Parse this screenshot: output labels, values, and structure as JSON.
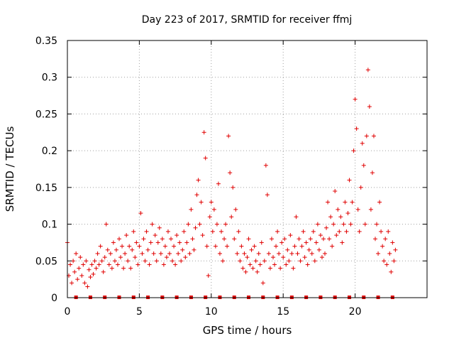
{
  "chart_data": {
    "type": "scatter",
    "title": "Day 223 of 2017, SRMTID for receiver ffmj",
    "xlabel": "GPS time / hours",
    "ylabel": "SRMTID / TECUs",
    "xlim": [
      0,
      25
    ],
    "ylim": [
      0,
      0.35
    ],
    "xticks": [
      0,
      5,
      10,
      15,
      20
    ],
    "xtick_labels": [
      "0",
      "5",
      "10",
      "15",
      "20"
    ],
    "yticks": [
      0,
      0.05,
      0.1,
      0.15,
      0.2,
      0.25,
      0.3,
      0.35
    ],
    "ytick_labels": [
      "0",
      "0.05",
      "0.1",
      "0.15",
      "0.2",
      "0.25",
      "0.3",
      "0.35"
    ],
    "grid": true,
    "marker": "+",
    "color": "#e00000",
    "data_gap_markers_x": [
      0.6,
      1.6,
      2.6,
      3.6,
      4.6,
      5.6,
      6.6,
      7.6,
      8.6,
      9.6,
      10.6,
      11.6,
      12.6,
      13.6,
      14.6,
      15.6,
      16.6,
      17.6,
      18.6,
      19.6,
      20.6,
      21.6,
      22.6
    ],
    "series": [
      {
        "name": "SRMTID",
        "points": [
          [
            0.0,
            0.075
          ],
          [
            0.1,
            0.03
          ],
          [
            0.2,
            0.045
          ],
          [
            0.3,
            0.02
          ],
          [
            0.4,
            0.05
          ],
          [
            0.5,
            0.035
          ],
          [
            0.6,
            0.06
          ],
          [
            0.7,
            0.025
          ],
          [
            0.8,
            0.04
          ],
          [
            0.9,
            0.055
          ],
          [
            1.0,
            0.03
          ],
          [
            1.1,
            0.045
          ],
          [
            1.2,
            0.02
          ],
          [
            1.3,
            0.05
          ],
          [
            1.4,
            0.015
          ],
          [
            1.5,
            0.038
          ],
          [
            1.6,
            0.028
          ],
          [
            1.7,
            0.045
          ],
          [
            1.8,
            0.032
          ],
          [
            1.9,
            0.05
          ],
          [
            2.0,
            0.04
          ],
          [
            2.1,
            0.06
          ],
          [
            2.2,
            0.045
          ],
          [
            2.3,
            0.07
          ],
          [
            2.4,
            0.05
          ],
          [
            2.5,
            0.035
          ],
          [
            2.6,
            0.055
          ],
          [
            2.7,
            0.1
          ],
          [
            2.8,
            0.065
          ],
          [
            2.9,
            0.045
          ],
          [
            3.0,
            0.06
          ],
          [
            3.1,
            0.04
          ],
          [
            3.2,
            0.075
          ],
          [
            3.3,
            0.05
          ],
          [
            3.4,
            0.065
          ],
          [
            3.5,
            0.045
          ],
          [
            3.6,
            0.08
          ],
          [
            3.7,
            0.055
          ],
          [
            3.8,
            0.07
          ],
          [
            3.9,
            0.04
          ],
          [
            4.0,
            0.06
          ],
          [
            4.1,
            0.085
          ],
          [
            4.2,
            0.05
          ],
          [
            4.3,
            0.07
          ],
          [
            4.4,
            0.04
          ],
          [
            4.5,
            0.065
          ],
          [
            4.6,
            0.09
          ],
          [
            4.7,
            0.055
          ],
          [
            4.8,
            0.075
          ],
          [
            4.9,
            0.045
          ],
          [
            5.0,
            0.07
          ],
          [
            5.1,
            0.115
          ],
          [
            5.2,
            0.06
          ],
          [
            5.3,
            0.08
          ],
          [
            5.4,
            0.05
          ],
          [
            5.5,
            0.09
          ],
          [
            5.6,
            0.065
          ],
          [
            5.7,
            0.045
          ],
          [
            5.8,
            0.075
          ],
          [
            5.9,
            0.1
          ],
          [
            6.0,
            0.06
          ],
          [
            6.1,
            0.085
          ],
          [
            6.2,
            0.05
          ],
          [
            6.3,
            0.075
          ],
          [
            6.4,
            0.095
          ],
          [
            6.5,
            0.06
          ],
          [
            6.6,
            0.08
          ],
          [
            6.7,
            0.045
          ],
          [
            6.8,
            0.07
          ],
          [
            6.9,
            0.055
          ],
          [
            7.0,
            0.09
          ],
          [
            7.1,
            0.06
          ],
          [
            7.2,
            0.08
          ],
          [
            7.3,
            0.05
          ],
          [
            7.4,
            0.07
          ],
          [
            7.5,
            0.045
          ],
          [
            7.6,
            0.085
          ],
          [
            7.7,
            0.06
          ],
          [
            7.8,
            0.075
          ],
          [
            7.9,
            0.05
          ],
          [
            8.0,
            0.065
          ],
          [
            8.1,
            0.09
          ],
          [
            8.2,
            0.055
          ],
          [
            8.3,
            0.075
          ],
          [
            8.4,
            0.1
          ],
          [
            8.5,
            0.06
          ],
          [
            8.6,
            0.12
          ],
          [
            8.7,
            0.08
          ],
          [
            8.8,
            0.065
          ],
          [
            8.9,
            0.095
          ],
          [
            9.0,
            0.14
          ],
          [
            9.1,
            0.16
          ],
          [
            9.2,
            0.1
          ],
          [
            9.3,
            0.13
          ],
          [
            9.4,
            0.085
          ],
          [
            9.5,
            0.225
          ],
          [
            9.6,
            0.19
          ],
          [
            9.7,
            0.07
          ],
          [
            9.8,
            0.03
          ],
          [
            9.9,
            0.11
          ],
          [
            10.0,
            0.13
          ],
          [
            10.1,
            0.09
          ],
          [
            10.2,
            0.12
          ],
          [
            10.3,
            0.07
          ],
          [
            10.4,
            0.1
          ],
          [
            10.5,
            0.155
          ],
          [
            10.6,
            0.06
          ],
          [
            10.7,
            0.09
          ],
          [
            10.8,
            0.05
          ],
          [
            10.9,
            0.08
          ],
          [
            11.0,
            0.1
          ],
          [
            11.1,
            0.07
          ],
          [
            11.2,
            0.22
          ],
          [
            11.3,
            0.17
          ],
          [
            11.4,
            0.11
          ],
          [
            11.5,
            0.15
          ],
          [
            11.6,
            0.08
          ],
          [
            11.7,
            0.12
          ],
          [
            11.8,
            0.06
          ],
          [
            11.9,
            0.09
          ],
          [
            12.0,
            0.05
          ],
          [
            12.1,
            0.07
          ],
          [
            12.2,
            0.04
          ],
          [
            12.3,
            0.06
          ],
          [
            12.4,
            0.035
          ],
          [
            12.5,
            0.055
          ],
          [
            12.6,
            0.08
          ],
          [
            12.7,
            0.045
          ],
          [
            12.8,
            0.065
          ],
          [
            12.9,
            0.04
          ],
          [
            13.0,
            0.07
          ],
          [
            13.1,
            0.05
          ],
          [
            13.2,
            0.035
          ],
          [
            13.3,
            0.06
          ],
          [
            13.4,
            0.045
          ],
          [
            13.5,
            0.075
          ],
          [
            13.6,
            0.02
          ],
          [
            13.7,
            0.05
          ],
          [
            13.8,
            0.18
          ],
          [
            13.9,
            0.14
          ],
          [
            14.0,
            0.06
          ],
          [
            14.1,
            0.04
          ],
          [
            14.2,
            0.08
          ],
          [
            14.3,
            0.055
          ],
          [
            14.4,
            0.045
          ],
          [
            14.5,
            0.07
          ],
          [
            14.6,
            0.09
          ],
          [
            14.7,
            0.06
          ],
          [
            14.8,
            0.04
          ],
          [
            14.9,
            0.075
          ],
          [
            15.0,
            0.055
          ],
          [
            15.1,
            0.08
          ],
          [
            15.2,
            0.045
          ],
          [
            15.3,
            0.065
          ],
          [
            15.4,
            0.05
          ],
          [
            15.5,
            0.085
          ],
          [
            15.6,
            0.06
          ],
          [
            15.7,
            0.04
          ],
          [
            15.8,
            0.07
          ],
          [
            15.9,
            0.11
          ],
          [
            16.0,
            0.06
          ],
          [
            16.1,
            0.08
          ],
          [
            16.2,
            0.05
          ],
          [
            16.3,
            0.07
          ],
          [
            16.4,
            0.09
          ],
          [
            16.5,
            0.055
          ],
          [
            16.6,
            0.075
          ],
          [
            16.7,
            0.045
          ],
          [
            16.8,
            0.065
          ],
          [
            16.9,
            0.08
          ],
          [
            17.0,
            0.06
          ],
          [
            17.1,
            0.09
          ],
          [
            17.2,
            0.05
          ],
          [
            17.3,
            0.075
          ],
          [
            17.4,
            0.1
          ],
          [
            17.5,
            0.065
          ],
          [
            17.6,
            0.085
          ],
          [
            17.7,
            0.055
          ],
          [
            17.8,
            0.08
          ],
          [
            17.9,
            0.06
          ],
          [
            18.0,
            0.095
          ],
          [
            18.1,
            0.13
          ],
          [
            18.2,
            0.08
          ],
          [
            18.3,
            0.11
          ],
          [
            18.4,
            0.07
          ],
          [
            18.5,
            0.1
          ],
          [
            18.6,
            0.145
          ],
          [
            18.7,
            0.085
          ],
          [
            18.8,
            0.12
          ],
          [
            18.9,
            0.09
          ],
          [
            19.0,
            0.11
          ],
          [
            19.1,
            0.075
          ],
          [
            19.2,
            0.1
          ],
          [
            19.3,
            0.13
          ],
          [
            19.4,
            0.09
          ],
          [
            19.5,
            0.115
          ],
          [
            19.6,
            0.16
          ],
          [
            19.7,
            0.1
          ],
          [
            19.8,
            0.13
          ],
          [
            19.9,
            0.2
          ],
          [
            20.0,
            0.27
          ],
          [
            20.1,
            0.23
          ],
          [
            20.2,
            0.12
          ],
          [
            20.3,
            0.09
          ],
          [
            20.4,
            0.15
          ],
          [
            20.5,
            0.21
          ],
          [
            20.6,
            0.18
          ],
          [
            20.7,
            0.1
          ],
          [
            20.8,
            0.22
          ],
          [
            20.9,
            0.31
          ],
          [
            21.0,
            0.26
          ],
          [
            21.1,
            0.12
          ],
          [
            21.2,
            0.17
          ],
          [
            21.3,
            0.22
          ],
          [
            21.4,
            0.08
          ],
          [
            21.5,
            0.1
          ],
          [
            21.6,
            0.06
          ],
          [
            21.7,
            0.13
          ],
          [
            21.8,
            0.09
          ],
          [
            21.9,
            0.07
          ],
          [
            22.0,
            0.05
          ],
          [
            22.1,
            0.08
          ],
          [
            22.2,
            0.045
          ],
          [
            22.3,
            0.09
          ],
          [
            22.4,
            0.06
          ],
          [
            22.5,
            0.035
          ],
          [
            22.6,
            0.075
          ],
          [
            22.7,
            0.05
          ],
          [
            22.8,
            0.065
          ]
        ]
      }
    ]
  }
}
